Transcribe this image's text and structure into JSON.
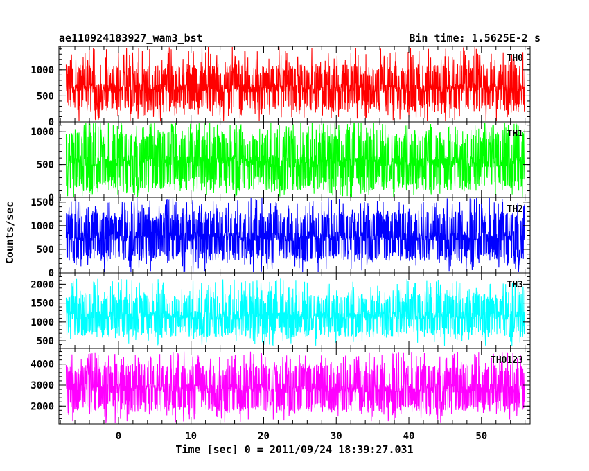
{
  "header": {
    "title": "ae110924183927_wam3_bst",
    "bin_time": "Bin time: 1.5625E-2 s"
  },
  "chart_data": {
    "type": "line",
    "title": "ae110924183927_wam3_bst",
    "xlabel": "Time [sec] 0 = 2011/09/24 18:39:27.031",
    "ylabel": "Counts/sec",
    "xlim": [
      -8.2,
      56.7
    ],
    "x_data_range": [
      -7.2,
      56
    ],
    "x_ticks": [
      0,
      10,
      20,
      30,
      40,
      50
    ],
    "x_tick_labels": [
      "0",
      "10",
      "20",
      "30",
      "40",
      "50"
    ],
    "bin_time_s": 0.015625,
    "panels": [
      {
        "name": "TH0",
        "color": "#ff0000",
        "ylim": [
          0,
          1450
        ],
        "y_ticks": [
          0,
          500,
          1000
        ],
        "y_tick_labels": [
          "0",
          "500",
          "1000"
        ],
        "typical_low": 200,
        "typical_high": 1100,
        "min_value": 0,
        "max_value": 1450
      },
      {
        "name": "TH1",
        "color": "#00ff00",
        "ylim": [
          0,
          1150
        ],
        "y_ticks": [
          0,
          500,
          1000
        ],
        "y_tick_labels": [
          "0",
          "500",
          "1000"
        ],
        "typical_low": 100,
        "typical_high": 1000,
        "min_value": 0,
        "max_value": 1150
      },
      {
        "name": "TH2",
        "color": "#0000ff",
        "ylim": [
          0,
          1600
        ],
        "y_ticks": [
          0,
          500,
          1000,
          1500
        ],
        "y_tick_labels": [
          "0",
          "500",
          "1000",
          "1500"
        ],
        "typical_low": 250,
        "typical_high": 1300,
        "min_value": 0,
        "max_value": 1600
      },
      {
        "name": "TH3",
        "color": "#00ffff",
        "ylim": [
          300,
          2300
        ],
        "y_ticks": [
          500,
          1000,
          1500,
          2000
        ],
        "y_tick_labels": [
          "500",
          "1000",
          "1500",
          "2000"
        ],
        "typical_low": 600,
        "typical_high": 1750,
        "min_value": 350,
        "max_value": 2150
      },
      {
        "name": "TH0123",
        "color": "#ff00ff",
        "ylim": [
          1150,
          4750
        ],
        "y_ticks": [
          2000,
          3000,
          4000
        ],
        "y_tick_labels": [
          "2000",
          "3000",
          "4000"
        ],
        "typical_low": 1700,
        "typical_high": 4000,
        "min_value": 1200,
        "max_value": 4600
      }
    ]
  }
}
